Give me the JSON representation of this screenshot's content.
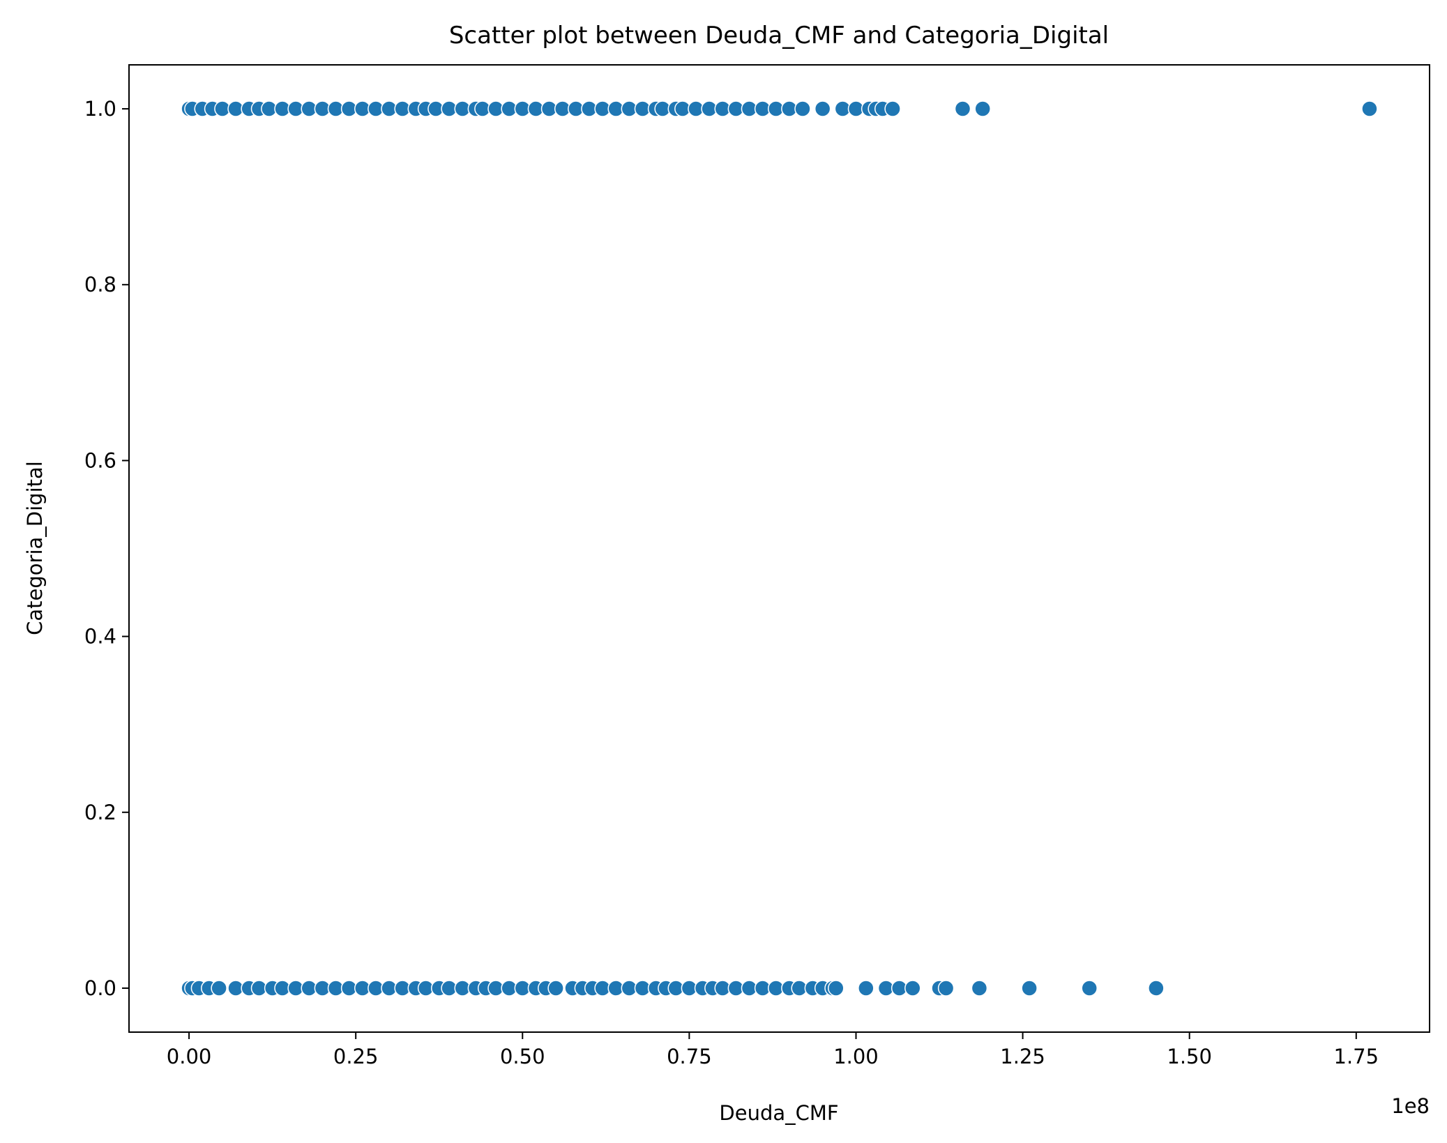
{
  "chart_data": {
    "type": "scatter",
    "title": "Scatter plot between Deuda_CMF and Categoria_Digital",
    "xlabel": "Deuda_CMF",
    "ylabel": "Categoria_Digital",
    "x_offset_label": "1e8",
    "x_scale": 100000000,
    "xlim": [
      -9000000,
      186000000
    ],
    "ylim": [
      -0.05,
      1.05
    ],
    "x_ticks": [
      {
        "value": 0,
        "label": "0.00"
      },
      {
        "value": 25000000,
        "label": "0.25"
      },
      {
        "value": 50000000,
        "label": "0.50"
      },
      {
        "value": 75000000,
        "label": "0.75"
      },
      {
        "value": 100000000,
        "label": "1.00"
      },
      {
        "value": 125000000,
        "label": "1.25"
      },
      {
        "value": 150000000,
        "label": "1.50"
      },
      {
        "value": 175000000,
        "label": "1.75"
      }
    ],
    "y_ticks": [
      {
        "value": 0.0,
        "label": "0.0"
      },
      {
        "value": 0.2,
        "label": "0.2"
      },
      {
        "value": 0.4,
        "label": "0.4"
      },
      {
        "value": 0.6,
        "label": "0.6"
      },
      {
        "value": 0.8,
        "label": "0.8"
      },
      {
        "value": 1.0,
        "label": "1.0"
      }
    ],
    "grid": false,
    "marker_color": "#1f77b4",
    "series": [
      {
        "y": 1,
        "x": [
          0,
          500000,
          2000000,
          3500000,
          5000000,
          7000000,
          9000000,
          10500000,
          12000000,
          14000000,
          16000000,
          18000000,
          20000000,
          22000000,
          24000000,
          26000000,
          28000000,
          30000000,
          32000000,
          34000000,
          35500000,
          37000000,
          39000000,
          41000000,
          43000000,
          44000000,
          46000000,
          48000000,
          50000000,
          52000000,
          54000000,
          56000000,
          58000000,
          60000000,
          62000000,
          64000000,
          66000000,
          68000000,
          70000000,
          71000000,
          73000000,
          74000000,
          76000000,
          78000000,
          80000000,
          82000000,
          84000000,
          86000000,
          88000000,
          90000000,
          92000000,
          95000000,
          98000000,
          100000000,
          102000000,
          103000000,
          104000000,
          105500000,
          116000000,
          119000000,
          177000000
        ]
      },
      {
        "y": 0,
        "x": [
          0,
          500000,
          1500000,
          3000000,
          4500000,
          7000000,
          9000000,
          10500000,
          12500000,
          14000000,
          16000000,
          18000000,
          20000000,
          22000000,
          24000000,
          26000000,
          28000000,
          30000000,
          32000000,
          34000000,
          35500000,
          37500000,
          39000000,
          41000000,
          43000000,
          44500000,
          46000000,
          48000000,
          50000000,
          52000000,
          53500000,
          55000000,
          57500000,
          59000000,
          60500000,
          62000000,
          64000000,
          66000000,
          68000000,
          70000000,
          71500000,
          73000000,
          75000000,
          77000000,
          78500000,
          80000000,
          82000000,
          84000000,
          86000000,
          88000000,
          90000000,
          91500000,
          93500000,
          95000000,
          96500000,
          97000000,
          101500000,
          104500000,
          106500000,
          108500000,
          112500000,
          113500000,
          118500000,
          126000000,
          135000000,
          145000000
        ]
      }
    ]
  }
}
